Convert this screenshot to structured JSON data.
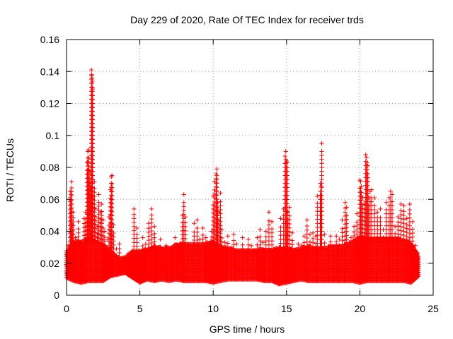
{
  "chart_data": {
    "type": "scatter",
    "title": "Day 229 of 2020, Rate Of TEC Index for receiver trds",
    "xlabel": "GPS time / hours",
    "ylabel": "ROTI / TECUs",
    "xlim": [
      0,
      25
    ],
    "ylim": [
      0,
      0.16
    ],
    "xticks": [
      0,
      5,
      10,
      15,
      20,
      25
    ],
    "xtick_labels": [
      "0",
      "5",
      "10",
      "15",
      "20",
      "25"
    ],
    "yticks": [
      0,
      0.02,
      0.04,
      0.06,
      0.08,
      0.1,
      0.12,
      0.14,
      0.16
    ],
    "ytick_labels": [
      "0",
      "0.02",
      "0.04",
      "0.06",
      "0.08",
      "0.1",
      "0.12",
      "0.14",
      "0.16"
    ],
    "grid": true,
    "marker": "+",
    "color": "#ff0000",
    "series": [
      {
        "points": [
          [
            0.0,
            0.019
          ],
          [
            0.05,
            0.025
          ],
          [
            0.1,
            0.031
          ],
          [
            0.15,
            0.021
          ],
          [
            0.2,
            0.015
          ],
          [
            0.25,
            0.065
          ],
          [
            0.3,
            0.063
          ],
          [
            0.35,
            0.071
          ],
          [
            0.4,
            0.044
          ],
          [
            0.45,
            0.052
          ],
          [
            0.5,
            0.013
          ],
          [
            0.6,
            0.036
          ],
          [
            0.7,
            0.022
          ],
          [
            0.8,
            0.046
          ],
          [
            0.9,
            0.017
          ],
          [
            1.0,
            0.027
          ],
          [
            1.1,
            0.012
          ],
          [
            1.2,
            0.048
          ],
          [
            1.3,
            0.052
          ],
          [
            1.4,
            0.083
          ],
          [
            1.45,
            0.09
          ],
          [
            1.5,
            0.091
          ],
          [
            1.55,
            0.078
          ],
          [
            1.6,
            0.076
          ],
          [
            1.65,
            0.066
          ],
          [
            1.7,
            0.141
          ],
          [
            1.72,
            0.138
          ],
          [
            1.74,
            0.136
          ],
          [
            1.76,
            0.134
          ],
          [
            1.78,
            0.129
          ],
          [
            1.8,
            0.061
          ],
          [
            1.9,
            0.071
          ],
          [
            2.0,
            0.054
          ],
          [
            2.1,
            0.043
          ],
          [
            2.2,
            0.063
          ],
          [
            2.3,
            0.052
          ],
          [
            2.4,
            0.057
          ],
          [
            2.5,
            0.047
          ],
          [
            2.6,
            0.04
          ],
          [
            2.8,
            0.035
          ],
          [
            2.9,
            0.049
          ],
          [
            3.0,
            0.066
          ],
          [
            3.05,
            0.074
          ],
          [
            3.1,
            0.075
          ],
          [
            3.2,
            0.044
          ],
          [
            3.4,
            0.029
          ],
          [
            3.6,
            0.032
          ],
          [
            3.8,
            0.021
          ],
          [
            4.0,
            0.017
          ],
          [
            4.2,
            0.026
          ],
          [
            4.4,
            0.024
          ],
          [
            4.6,
            0.054
          ],
          [
            4.8,
            0.042
          ],
          [
            5.0,
            0.019
          ],
          [
            5.2,
            0.036
          ],
          [
            5.4,
            0.032
          ],
          [
            5.6,
            0.045
          ],
          [
            5.8,
            0.054
          ],
          [
            6.0,
            0.043
          ],
          [
            6.2,
            0.027
          ],
          [
            6.4,
            0.035
          ],
          [
            6.6,
            0.018
          ],
          [
            6.8,
            0.031
          ],
          [
            7.0,
            0.025
          ],
          [
            7.2,
            0.028
          ],
          [
            7.4,
            0.036
          ],
          [
            7.6,
            0.027
          ],
          [
            7.8,
            0.032
          ],
          [
            7.9,
            0.05
          ],
          [
            8.0,
            0.063
          ],
          [
            8.1,
            0.049
          ],
          [
            8.3,
            0.031
          ],
          [
            8.5,
            0.024
          ],
          [
            8.7,
            0.045
          ],
          [
            8.9,
            0.047
          ],
          [
            9.1,
            0.035
          ],
          [
            9.3,
            0.042
          ],
          [
            9.5,
            0.036
          ],
          [
            9.7,
            0.029
          ],
          [
            9.9,
            0.04
          ],
          [
            10.0,
            0.062
          ],
          [
            10.1,
            0.071
          ],
          [
            10.2,
            0.076
          ],
          [
            10.25,
            0.079
          ],
          [
            10.3,
            0.058
          ],
          [
            10.4,
            0.052
          ],
          [
            10.5,
            0.064
          ],
          [
            10.6,
            0.041
          ],
          [
            10.8,
            0.033
          ],
          [
            11.0,
            0.037
          ],
          [
            11.2,
            0.029
          ],
          [
            11.4,
            0.038
          ],
          [
            11.6,
            0.032
          ],
          [
            11.8,
            0.022
          ],
          [
            12.0,
            0.036
          ],
          [
            12.2,
            0.024
          ],
          [
            12.4,
            0.035
          ],
          [
            12.6,
            0.031
          ],
          [
            12.8,
            0.028
          ],
          [
            13.0,
            0.036
          ],
          [
            13.2,
            0.041
          ],
          [
            13.4,
            0.033
          ],
          [
            13.6,
            0.04
          ],
          [
            13.8,
            0.052
          ],
          [
            14.0,
            0.046
          ],
          [
            14.2,
            0.027
          ],
          [
            14.4,
            0.023
          ],
          [
            14.6,
            0.048
          ],
          [
            14.8,
            0.054
          ],
          [
            14.9,
            0.087
          ],
          [
            14.95,
            0.09
          ],
          [
            15.0,
            0.084
          ],
          [
            15.05,
            0.083
          ],
          [
            15.1,
            0.052
          ],
          [
            15.2,
            0.055
          ],
          [
            15.4,
            0.039
          ],
          [
            15.6,
            0.028
          ],
          [
            15.8,
            0.032
          ],
          [
            16.0,
            0.031
          ],
          [
            16.2,
            0.037
          ],
          [
            16.4,
            0.047
          ],
          [
            16.6,
            0.038
          ],
          [
            16.8,
            0.039
          ],
          [
            17.0,
            0.037
          ],
          [
            17.1,
            0.062
          ],
          [
            17.3,
            0.07
          ],
          [
            17.35,
            0.068
          ],
          [
            17.4,
            0.095
          ],
          [
            17.6,
            0.038
          ],
          [
            17.8,
            0.028
          ],
          [
            18.0,
            0.037
          ],
          [
            18.2,
            0.025
          ],
          [
            18.4,
            0.037
          ],
          [
            18.6,
            0.035
          ],
          [
            18.8,
            0.047
          ],
          [
            19.0,
            0.058
          ],
          [
            19.1,
            0.055
          ],
          [
            19.2,
            0.03
          ],
          [
            19.4,
            0.036
          ],
          [
            19.6,
            0.043
          ],
          [
            19.8,
            0.051
          ],
          [
            20.0,
            0.072
          ],
          [
            20.05,
            0.071
          ],
          [
            20.1,
            0.068
          ],
          [
            20.2,
            0.061
          ],
          [
            20.3,
            0.057
          ],
          [
            20.4,
            0.088
          ],
          [
            20.45,
            0.086
          ],
          [
            20.5,
            0.083
          ],
          [
            20.55,
            0.081
          ],
          [
            20.6,
            0.061
          ],
          [
            20.7,
            0.065
          ],
          [
            20.8,
            0.066
          ],
          [
            21.0,
            0.061
          ],
          [
            21.2,
            0.052
          ],
          [
            21.4,
            0.054
          ],
          [
            21.6,
            0.041
          ],
          [
            21.8,
            0.058
          ],
          [
            22.0,
            0.061
          ],
          [
            22.1,
            0.065
          ],
          [
            22.2,
            0.063
          ],
          [
            22.4,
            0.043
          ],
          [
            22.6,
            0.049
          ],
          [
            22.8,
            0.057
          ],
          [
            23.0,
            0.056
          ],
          [
            23.2,
            0.048
          ],
          [
            23.4,
            0.057
          ],
          [
            23.6,
            0.046
          ],
          [
            23.8,
            0.031
          ],
          [
            23.95,
            0.026
          ]
        ],
        "band": [
          [
            0.0,
            0.011,
            0.028
          ],
          [
            0.5,
            0.009,
            0.034
          ],
          [
            1.0,
            0.008,
            0.034
          ],
          [
            1.5,
            0.009,
            0.036
          ],
          [
            2.0,
            0.009,
            0.034
          ],
          [
            2.5,
            0.009,
            0.032
          ],
          [
            3.0,
            0.012,
            0.028
          ],
          [
            3.5,
            0.013,
            0.024
          ],
          [
            4.0,
            0.014,
            0.024
          ],
          [
            4.5,
            0.011,
            0.028
          ],
          [
            5.0,
            0.008,
            0.028
          ],
          [
            5.5,
            0.01,
            0.029
          ],
          [
            6.0,
            0.009,
            0.031
          ],
          [
            6.5,
            0.01,
            0.03
          ],
          [
            7.0,
            0.009,
            0.03
          ],
          [
            7.5,
            0.01,
            0.032
          ],
          [
            8.0,
            0.009,
            0.033
          ],
          [
            8.5,
            0.009,
            0.032
          ],
          [
            9.0,
            0.009,
            0.032
          ],
          [
            9.5,
            0.009,
            0.033
          ],
          [
            10.0,
            0.008,
            0.034
          ],
          [
            10.5,
            0.009,
            0.031
          ],
          [
            11.0,
            0.01,
            0.03
          ],
          [
            11.5,
            0.01,
            0.029
          ],
          [
            12.0,
            0.01,
            0.029
          ],
          [
            12.5,
            0.01,
            0.029
          ],
          [
            13.0,
            0.01,
            0.029
          ],
          [
            13.5,
            0.009,
            0.029
          ],
          [
            14.0,
            0.009,
            0.029
          ],
          [
            14.5,
            0.007,
            0.03
          ],
          [
            15.0,
            0.008,
            0.03
          ],
          [
            15.5,
            0.009,
            0.029
          ],
          [
            16.0,
            0.01,
            0.03
          ],
          [
            16.5,
            0.009,
            0.031
          ],
          [
            17.0,
            0.009,
            0.03
          ],
          [
            17.5,
            0.009,
            0.03
          ],
          [
            18.0,
            0.009,
            0.031
          ],
          [
            18.5,
            0.009,
            0.031
          ],
          [
            19.0,
            0.009,
            0.032
          ],
          [
            19.5,
            0.009,
            0.034
          ],
          [
            20.0,
            0.008,
            0.037
          ],
          [
            20.5,
            0.009,
            0.036
          ],
          [
            21.0,
            0.009,
            0.036
          ],
          [
            21.5,
            0.009,
            0.036
          ],
          [
            22.0,
            0.009,
            0.036
          ],
          [
            22.5,
            0.009,
            0.036
          ],
          [
            23.0,
            0.009,
            0.035
          ],
          [
            23.5,
            0.008,
            0.033
          ],
          [
            24.0,
            0.012,
            0.025
          ]
        ]
      }
    ]
  }
}
